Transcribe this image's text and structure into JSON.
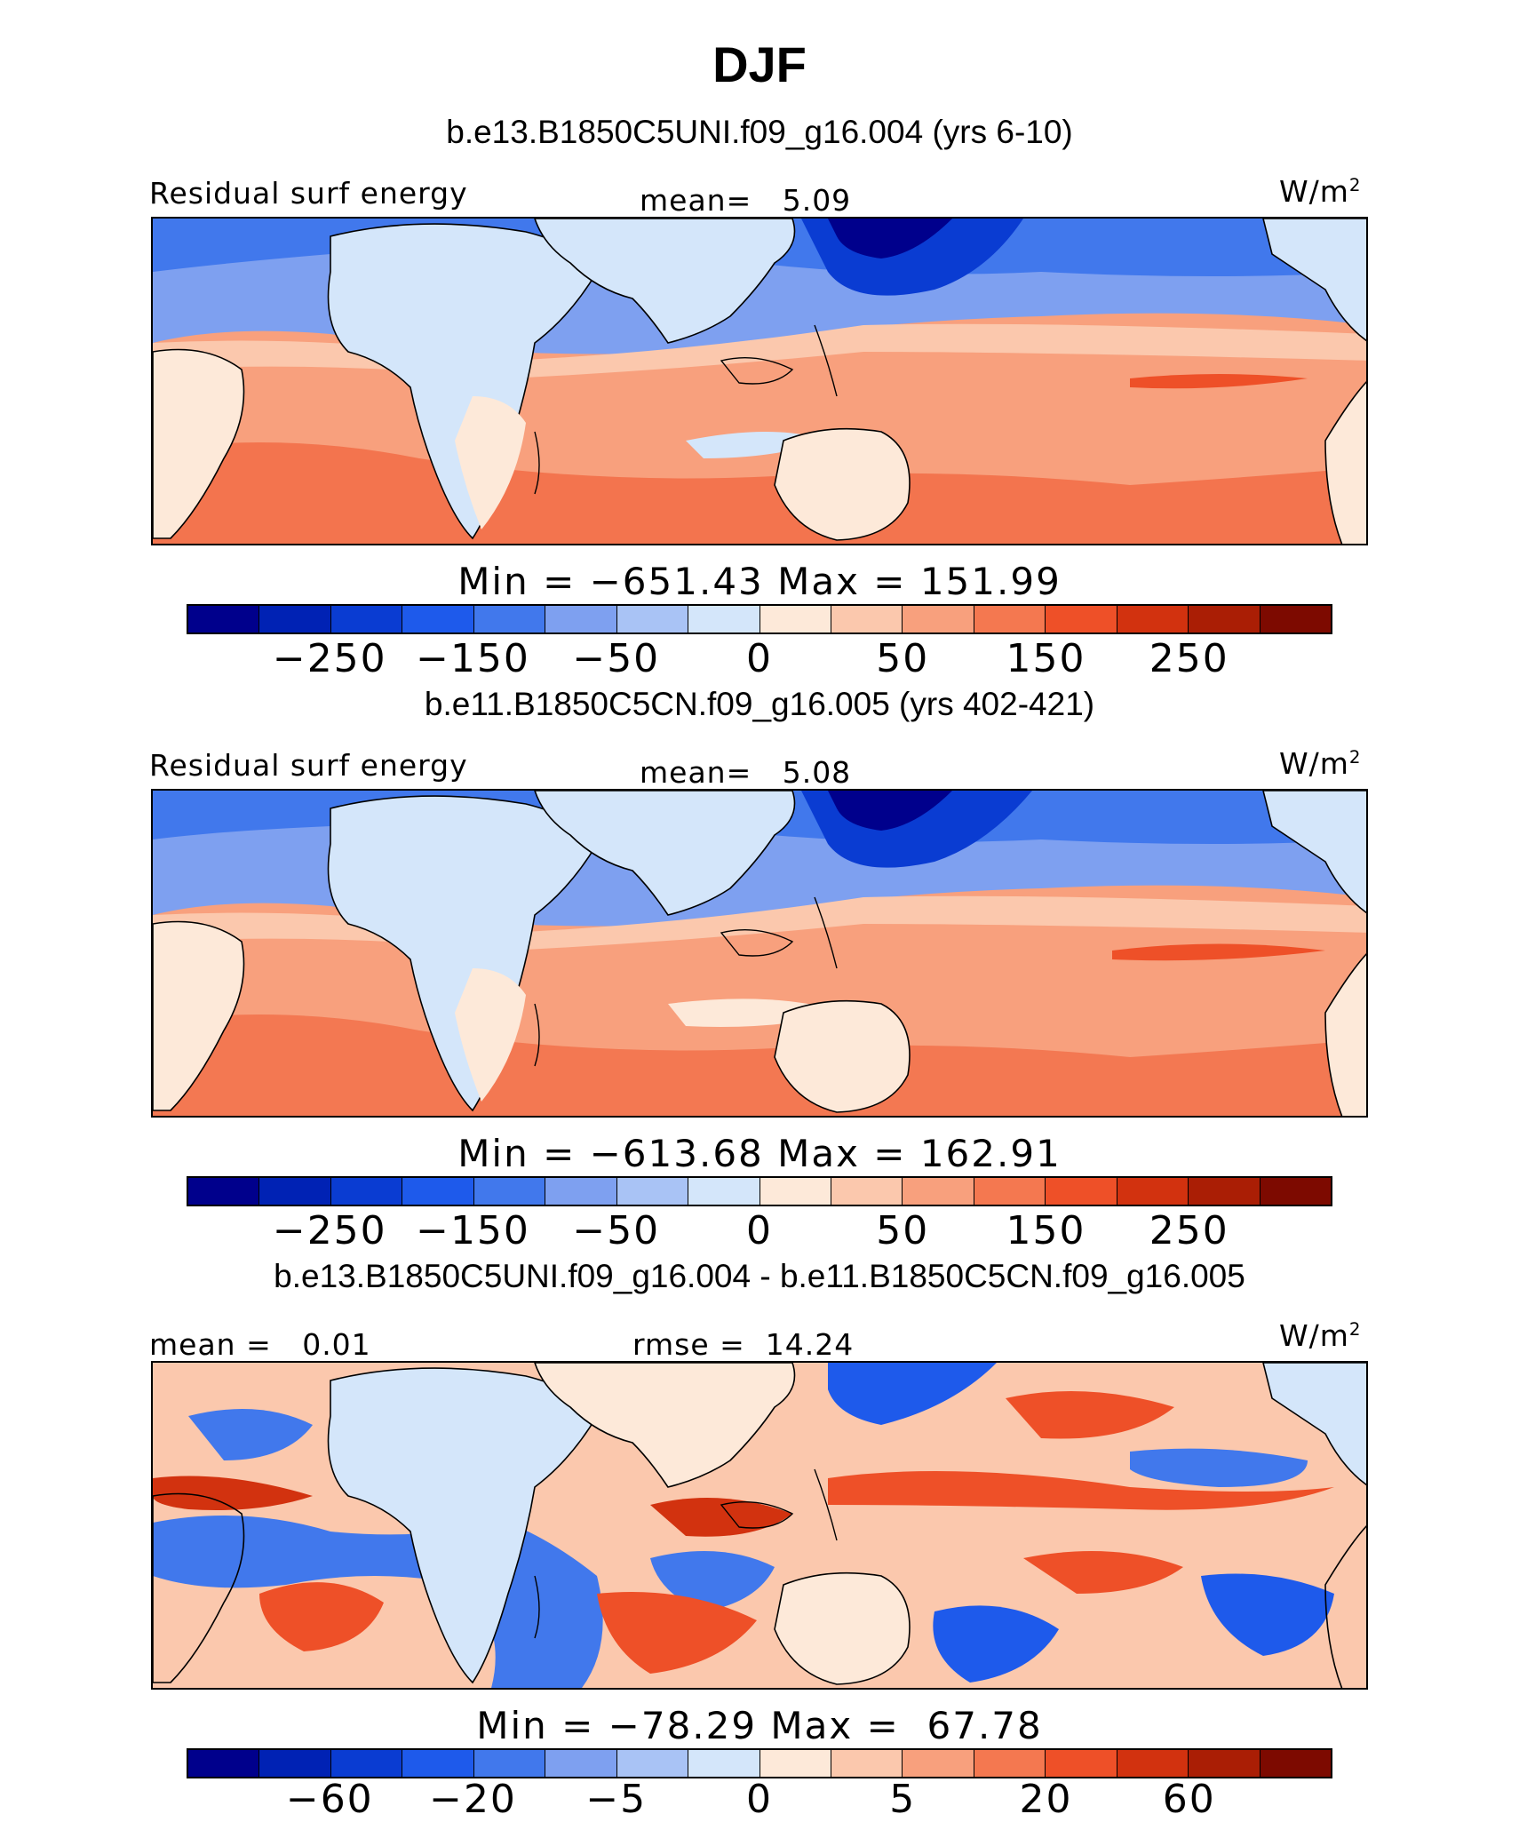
{
  "title": "DJF",
  "palette": [
    "#00008c",
    "#0022b4",
    "#0a3cd2",
    "#1e5aeb",
    "#4178ec",
    "#7ea0f0",
    "#a9c3f5",
    "#d4e6fa",
    "#fde9d9",
    "#fbc8ad",
    "#f8a07d",
    "#f47850",
    "#ee5028",
    "#d2320f",
    "#aa1e05",
    "#7d0a00"
  ],
  "land_color": "#d4e6fa",
  "coast_color": "#000000",
  "panels": [
    {
      "case_title": "b.e13.B1850C5UNI.f09_g16.004 (yrs 6-10)",
      "left_label": "Residual surf energy",
      "center_label": "mean=   5.09",
      "units": "W/m",
      "units_sup": "2",
      "minmax": "Min = −651.43 Max = 151.99",
      "colorbar_labels": [
        "−250",
        "−150",
        "−50",
        "0",
        "50",
        "150",
        "250"
      ]
    },
    {
      "case_title": "b.e11.B1850C5CN.f09_g16.005 (yrs 402-421)",
      "left_label": "Residual surf energy",
      "center_label": "mean=   5.08",
      "units": "W/m",
      "units_sup": "2",
      "minmax": "Min = −613.68 Max = 162.91",
      "colorbar_labels": [
        "−250",
        "−150",
        "−50",
        "0",
        "50",
        "150",
        "250"
      ]
    },
    {
      "case_title": "b.e13.B1850C5UNI.f09_g16.004 - b.e11.B1850C5CN.f09_g16.005",
      "left_label": "mean =   0.01",
      "center_label": "rmse =  14.24",
      "units": "W/m",
      "units_sup": "2",
      "minmax": "Min = −78.29 Max =  67.78",
      "colorbar_labels": [
        "−60",
        "−20",
        "−5",
        "0",
        "5",
        "20",
        "60"
      ]
    }
  ]
}
